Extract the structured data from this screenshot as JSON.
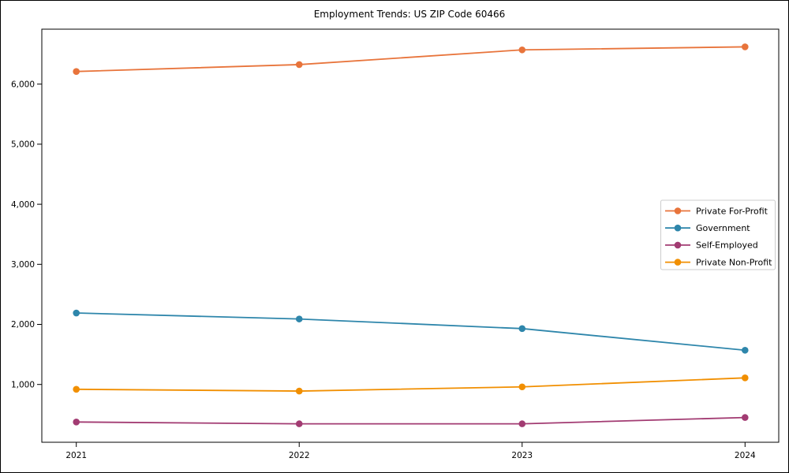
{
  "title": "Employment Trends: US ZIP Code 60466",
  "chart_data": {
    "type": "line",
    "title": "Employment Trends: US ZIP Code 60466",
    "xlabel": "",
    "ylabel": "",
    "x": [
      2021,
      2022,
      2023,
      2024
    ],
    "x_tick_labels": [
      "2021",
      "2022",
      "2023",
      "2024"
    ],
    "y_ticks": [
      1000,
      2000,
      3000,
      4000,
      5000,
      6000
    ],
    "y_tick_labels": [
      "1,000",
      "2,000",
      "3,000",
      "4,000",
      "5,000",
      "6,000"
    ],
    "ylim": [
      40,
      6915
    ],
    "grid": false,
    "marker": "circle",
    "legend_position": "center right",
    "series": [
      {
        "name": "Private For-Profit",
        "color": "#E8743B",
        "values": [
          6210,
          6325,
          6570,
          6620
        ]
      },
      {
        "name": "Government",
        "color": "#2E86AB",
        "values": [
          2190,
          2090,
          1930,
          1570
        ]
      },
      {
        "name": "Self-Employed",
        "color": "#A23B72",
        "values": [
          375,
          345,
          345,
          450
        ]
      },
      {
        "name": "Private Non-Profit",
        "color": "#F18F01",
        "values": [
          920,
          890,
          960,
          1110
        ]
      }
    ],
    "axis_color": "#000000",
    "legend_border_color": "#cccccc",
    "background_color": "#ffffff"
  }
}
